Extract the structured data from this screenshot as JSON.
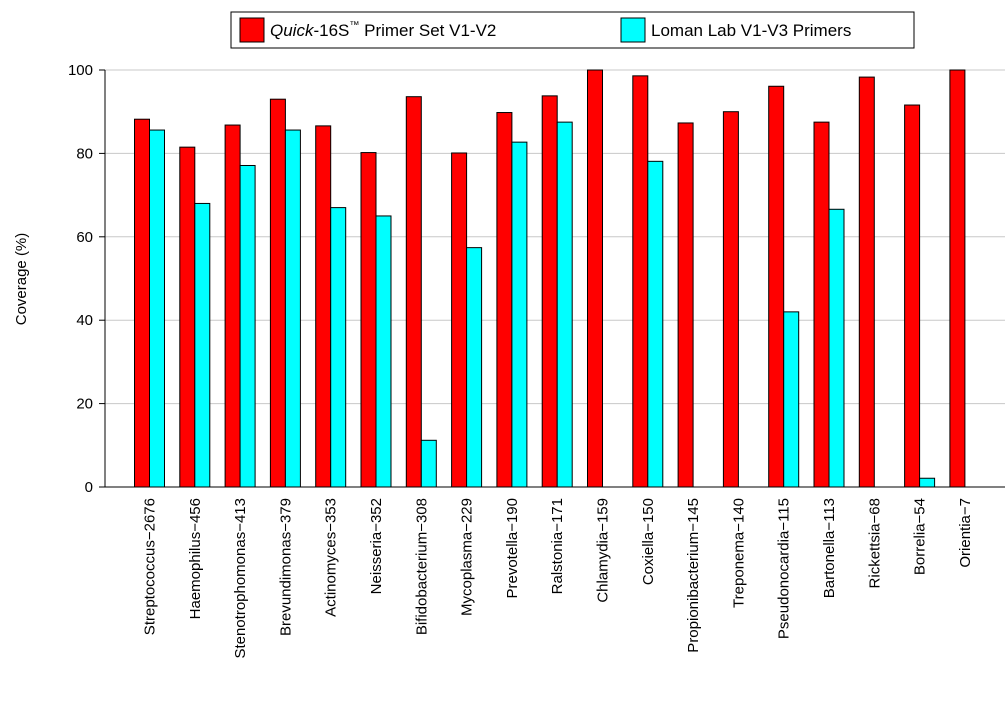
{
  "chart_data": {
    "type": "bar",
    "ylabel": "Coverage (%)",
    "xlabel": "",
    "ylim": [
      0,
      100
    ],
    "yticks": [
      0,
      20,
      40,
      60,
      80,
      100
    ],
    "grid": true,
    "legend_position": "top",
    "categories": [
      "Streptococcus−2676",
      "Haemophilus−456",
      "Stenotrophomonas−413",
      "Brevundimonas−379",
      "Actinomyces−353",
      "Neisseria−352",
      "Bifidobacterium−308",
      "Mycoplasma−229",
      "Prevotella−190",
      "Ralstonia−171",
      "Chlamydia−159",
      "Coxiella−150",
      "Propionibacterium−145",
      "Treponema−140",
      "Pseudonocardia−115",
      "Bartonella−113",
      "Rickettsia−68",
      "Borrelia−54",
      "Orientia−7"
    ],
    "series": [
      {
        "name_italic": "Quick",
        "name_rest": "-16S",
        "name_sup": "™",
        "name_tail": " Primer Set V1-V2",
        "color": "#ff0000",
        "values": [
          88.2,
          81.5,
          86.8,
          93.0,
          86.6,
          80.2,
          93.6,
          80.1,
          89.8,
          93.8,
          100,
          98.6,
          87.3,
          90.0,
          96.1,
          87.5,
          98.3,
          91.6,
          100
        ]
      },
      {
        "name": "Loman Lab V1-V3 Primers",
        "color": "#00ffff",
        "values": [
          85.6,
          68.0,
          77.1,
          85.6,
          67.0,
          65.0,
          11.2,
          57.4,
          82.7,
          87.5,
          0,
          78.1,
          0,
          0,
          42.0,
          66.6,
          0,
          2.1,
          0
        ]
      }
    ]
  }
}
